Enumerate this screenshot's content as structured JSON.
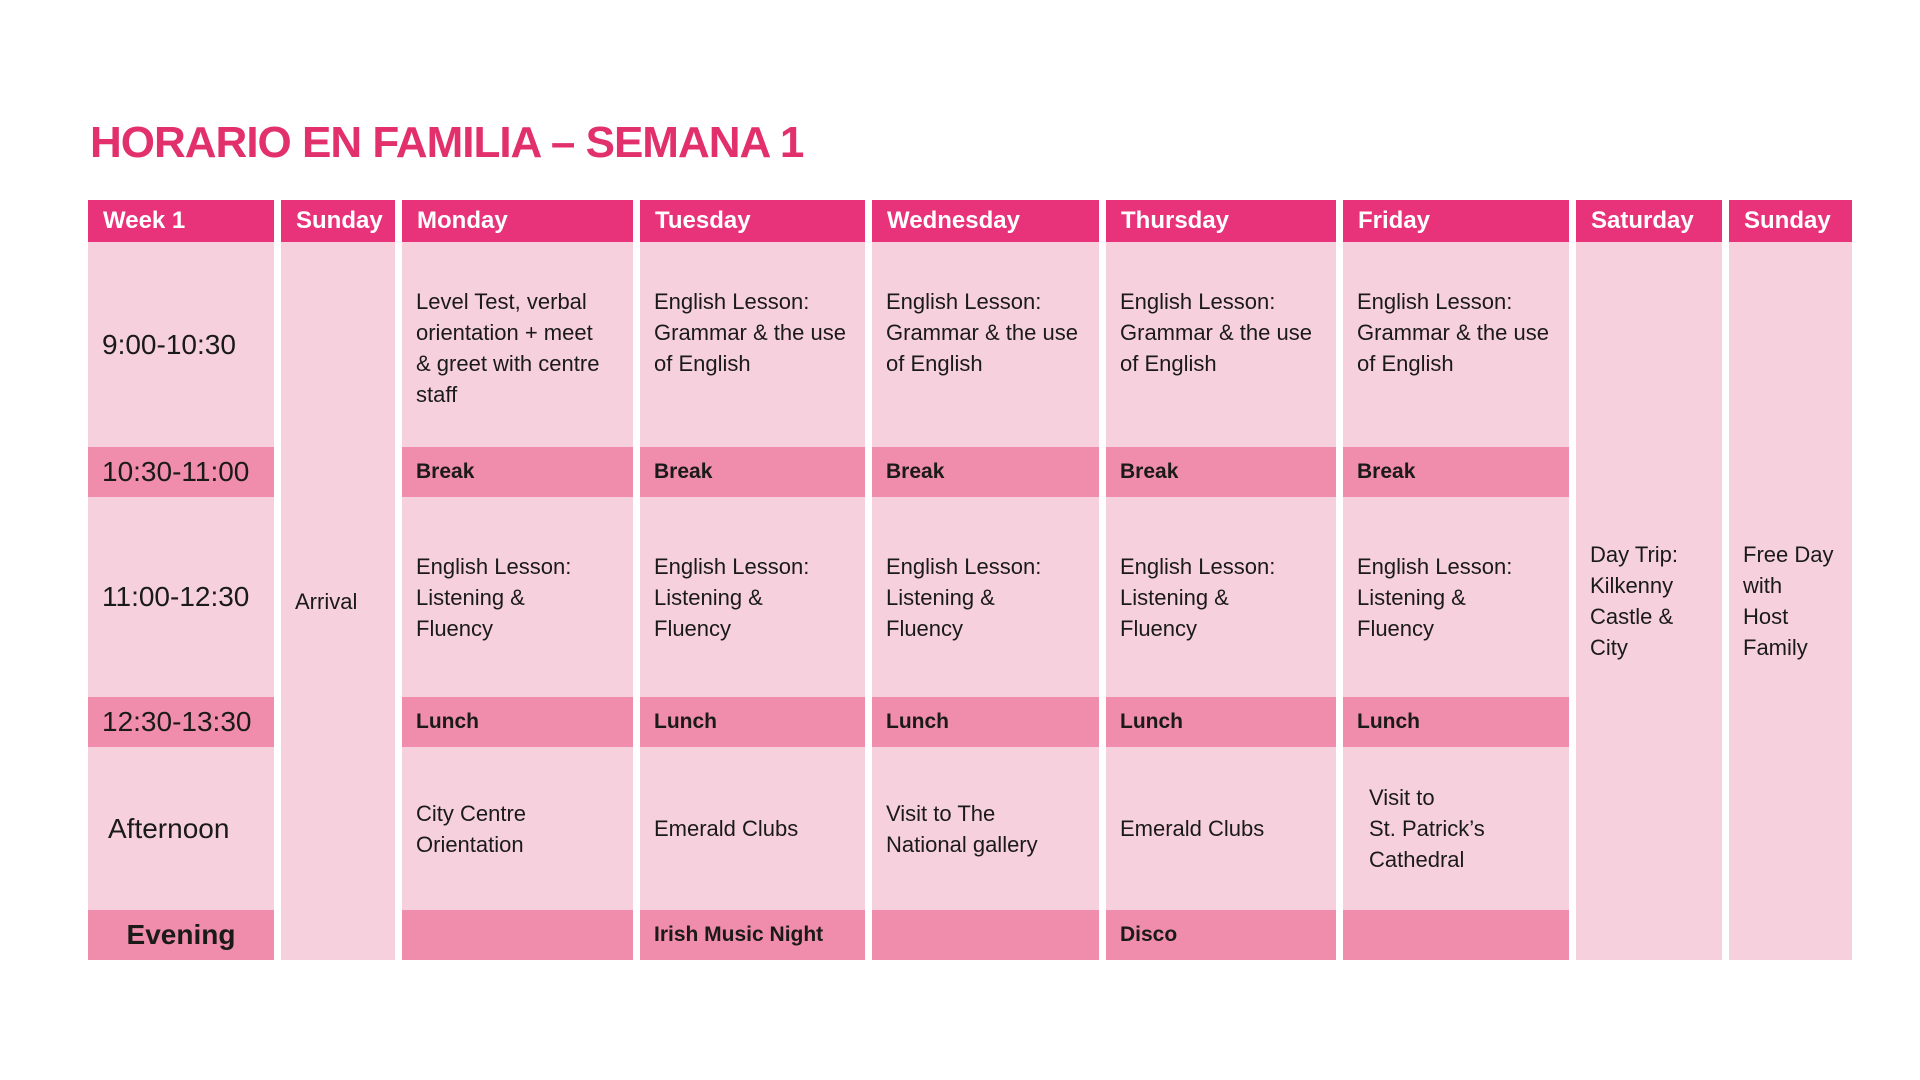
{
  "title": "HORARIO EN FAMILIA – SEMANA 1",
  "colors": {
    "accent": "#e8337a",
    "title": "#e1306c",
    "light": "#f7d0de",
    "mid": "#f08cac"
  },
  "headers": [
    "Week 1",
    "Sunday",
    "Monday",
    "Tuesday",
    "Wednesday",
    "Thursday",
    "Friday",
    "Saturday",
    "Sunday"
  ],
  "times": [
    "9:00-10:30",
    "10:30-11:00",
    "11:00-12:30",
    "12:30-13:30",
    "Afternoon",
    "Evening"
  ],
  "sunday_arrival": "Arrival",
  "saturday": "Day Trip:\nKilkenny\nCastle &\nCity",
  "sunday_end": "Free Day\nwith\nHost\nFamily",
  "days": [
    {
      "morning": "Level Test, verbal\norientation + meet\n& greet with centre\nstaff",
      "break": "Break",
      "late_morning": "English Lesson:\nListening &\nFluency",
      "lunch": "Lunch",
      "afternoon": "City Centre\nOrientation",
      "evening": ""
    },
    {
      "morning": "English Lesson:\nGrammar & the use\nof English",
      "break": "Break",
      "late_morning": "English Lesson:\nListening &\nFluency",
      "lunch": "Lunch",
      "afternoon": "Emerald Clubs",
      "evening": "Irish Music Night"
    },
    {
      "morning": "English Lesson:\nGrammar & the use\nof English",
      "break": "Break",
      "late_morning": "English Lesson:\nListening &\nFluency",
      "lunch": "Lunch",
      "afternoon": "Visit to The\nNational gallery",
      "evening": ""
    },
    {
      "morning": "English Lesson:\nGrammar & the use\nof English",
      "break": "Break",
      "late_morning": "English Lesson:\nListening &\nFluency",
      "lunch": "Lunch",
      "afternoon": "Emerald Clubs",
      "evening": "Disco"
    },
    {
      "morning": "English Lesson:\nGrammar & the use\nof English",
      "break": "Break",
      "late_morning": "English Lesson:\nListening &\nFluency",
      "lunch": "Lunch",
      "afternoon": "Visit to\nSt. Patrick’s\nCathedral",
      "evening": ""
    }
  ]
}
